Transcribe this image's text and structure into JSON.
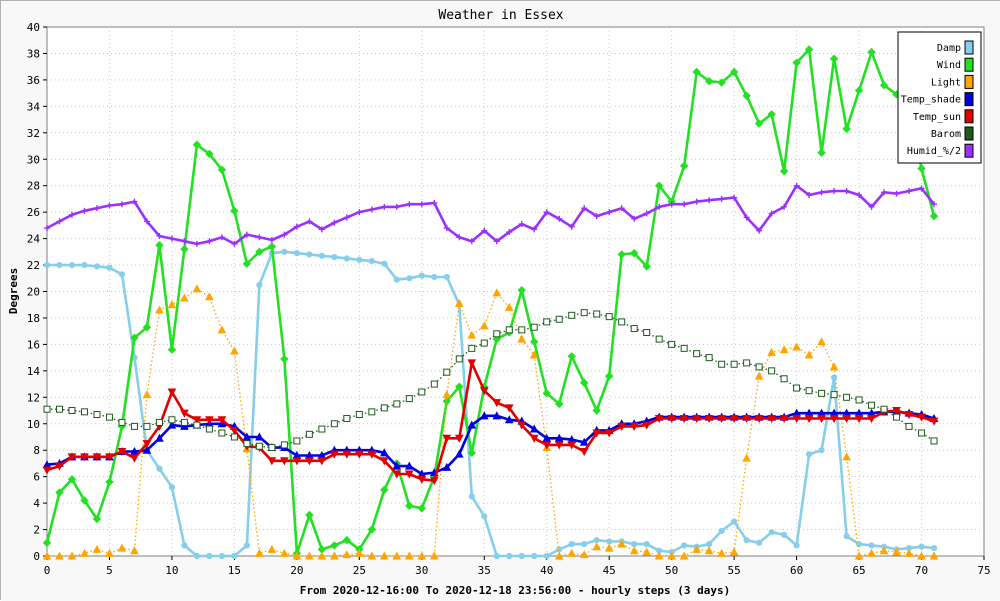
{
  "chart_data": {
    "type": "line",
    "title": "Weather in Essex",
    "xlabel": "From 2020-12-16:00 To 2020-12-18 23:56:00 - hourly steps (3 days)",
    "ylabel": "Degrees",
    "xlim": [
      0,
      75
    ],
    "ylim": [
      0,
      40
    ],
    "xticks": [
      0,
      5,
      10,
      15,
      20,
      25,
      30,
      35,
      40,
      45,
      50,
      55,
      60,
      65,
      70,
      75
    ],
    "yticks": [
      0,
      2,
      4,
      6,
      8,
      10,
      12,
      14,
      16,
      18,
      20,
      22,
      24,
      26,
      28,
      30,
      32,
      34,
      36,
      38,
      40
    ],
    "grid": true,
    "legend_position": "top-right",
    "x": [
      0,
      1,
      2,
      3,
      4,
      5,
      6,
      7,
      8,
      9,
      10,
      11,
      12,
      13,
      14,
      15,
      16,
      17,
      18,
      19,
      20,
      21,
      22,
      23,
      24,
      25,
      26,
      27,
      28,
      29,
      30,
      31,
      32,
      33,
      34,
      35,
      36,
      37,
      38,
      39,
      40,
      41,
      42,
      43,
      44,
      45,
      46,
      47,
      48,
      49,
      50,
      51,
      52,
      53,
      54,
      55,
      56,
      57,
      58,
      59,
      60,
      61,
      62,
      63,
      64,
      65,
      66,
      67,
      68,
      69,
      70,
      71
    ],
    "series": [
      {
        "name": "Damp",
        "color": "#87ceeb",
        "style": "solid",
        "marker": "circle",
        "values": [
          22,
          22,
          22,
          22,
          21.9,
          21.8,
          21.3,
          15,
          8,
          6.6,
          5.2,
          0.8,
          0,
          0,
          0,
          0,
          0.8,
          20.5,
          22.9,
          23,
          22.9,
          22.8,
          22.7,
          22.6,
          22.5,
          22.4,
          22.3,
          22.1,
          20.9,
          21,
          21.2,
          21.1,
          21.1,
          19,
          4.5,
          3,
          0,
          0,
          0,
          0,
          0,
          0.5,
          0.9,
          0.9,
          1.2,
          1.1,
          1.1,
          0.9,
          0.9,
          0.4,
          0.3,
          0.8,
          0.7,
          0.9,
          1.9,
          2.6,
          1.2,
          1,
          1.8,
          1.6,
          0.8,
          7.7,
          8,
          13.5,
          1.5,
          0.9,
          0.8,
          0.7,
          0.5,
          0.6,
          0.7,
          0.6
        ]
      },
      {
        "name": "Wind",
        "color": "#22e022",
        "style": "solid",
        "marker": "diamond",
        "values": [
          1,
          4.8,
          5.8,
          4.2,
          2.8,
          5.6,
          9.8,
          16.5,
          17.3,
          23.5,
          15.6,
          23.2,
          31.1,
          30.4,
          29.2,
          26.1,
          22.1,
          23,
          23.4,
          14.9,
          0.2,
          3.1,
          0.5,
          0.8,
          1.2,
          0.5,
          2,
          5,
          7,
          3.8,
          3.6,
          6,
          11.7,
          12.8,
          7.8,
          12.8,
          16.4,
          16.9,
          20.1,
          16.2,
          12.3,
          11.5,
          15.1,
          13.1,
          11,
          13.6,
          22.8,
          22.9,
          21.9,
          28,
          26.8,
          29.5,
          36.6,
          35.9,
          35.8,
          36.6,
          34.8,
          32.7,
          33.4,
          29.1,
          37.3,
          38.3,
          30.5,
          37.6,
          32.3,
          35.2,
          38.1,
          35.6,
          34.9,
          33.9,
          29.3,
          25.7
        ]
      },
      {
        "name": "Light",
        "color": "#ffa500",
        "style": "dotted",
        "marker": "triangle",
        "values": [
          0,
          0,
          0,
          0.2,
          0.5,
          0.2,
          0.6,
          0.4,
          12.2,
          18.6,
          19,
          19.5,
          20.2,
          19.6,
          17.1,
          15.5,
          8.1,
          0.2,
          0.5,
          0.2,
          0,
          0,
          0,
          0,
          0.1,
          0.2,
          0,
          0,
          0,
          0,
          0,
          0,
          12.2,
          19.1,
          16.7,
          17.4,
          19.9,
          18.8,
          16.4,
          15.2,
          8.2,
          0,
          0.2,
          0.1,
          0.7,
          0.6,
          0.9,
          0.4,
          0.3,
          0,
          0,
          0,
          0.5,
          0.4,
          0.2,
          0.3,
          7.4,
          13.6,
          15.4,
          15.6,
          15.8,
          15.2,
          16.2,
          14.3,
          7.5,
          0,
          0.2,
          0.4,
          0.3,
          0.2,
          0,
          0
        ]
      },
      {
        "name": "Temp_shade",
        "color": "#0000e0",
        "style": "solid",
        "marker": "triangle",
        "values": [
          6.9,
          7,
          7.5,
          7.5,
          7.5,
          7.5,
          7.9,
          7.9,
          8,
          8.9,
          9.9,
          9.8,
          9.9,
          10,
          10,
          9.8,
          9,
          9,
          8.2,
          8.2,
          7.6,
          7.6,
          7.6,
          8,
          8,
          8,
          8,
          7.8,
          6.8,
          6.8,
          6.2,
          6.3,
          6.7,
          7.7,
          9.9,
          10.6,
          10.6,
          10.3,
          10.2,
          9.6,
          8.9,
          8.9,
          8.8,
          8.6,
          9.5,
          9.5,
          10,
          10,
          10.2,
          10.5,
          10.5,
          10.5,
          10.5,
          10.5,
          10.5,
          10.5,
          10.5,
          10.5,
          10.5,
          10.5,
          10.8,
          10.8,
          10.8,
          10.8,
          10.8,
          10.8,
          10.8,
          10.9,
          10.9,
          10.8,
          10.7,
          10.4
        ]
      },
      {
        "name": "Temp_sun",
        "color": "#e00000",
        "style": "solid",
        "marker": "triangle-down",
        "values": [
          6.5,
          6.8,
          7.5,
          7.5,
          7.5,
          7.5,
          7.9,
          7.4,
          8.5,
          9.8,
          12.4,
          10.8,
          10.3,
          10.3,
          10.3,
          9.5,
          8.3,
          8.2,
          7.2,
          7.2,
          7.2,
          7.2,
          7.2,
          7.7,
          7.7,
          7.7,
          7.7,
          7.2,
          6.2,
          6.2,
          5.8,
          5.7,
          8.9,
          8.9,
          14.6,
          12.5,
          11.6,
          11.2,
          9.9,
          8.9,
          8.4,
          8.4,
          8.4,
          7.9,
          9.3,
          9.3,
          9.8,
          9.8,
          9.9,
          10.4,
          10.4,
          10.4,
          10.4,
          10.4,
          10.4,
          10.4,
          10.4,
          10.4,
          10.4,
          10.4,
          10.4,
          10.4,
          10.4,
          10.4,
          10.4,
          10.4,
          10.4,
          10.9,
          11,
          10.7,
          10.5,
          10.2
        ]
      },
      {
        "name": "Barom",
        "color": "#1e5a1e",
        "style": "dotted",
        "marker": "square",
        "values": [
          11.1,
          11.1,
          11,
          10.9,
          10.7,
          10.5,
          10.1,
          9.8,
          9.8,
          10.1,
          10.3,
          10.1,
          9.9,
          9.6,
          9.3,
          9,
          8.5,
          8.3,
          8.2,
          8.4,
          8.7,
          9.2,
          9.6,
          10,
          10.4,
          10.7,
          10.9,
          11.2,
          11.5,
          11.9,
          12.4,
          13,
          13.9,
          14.9,
          15.7,
          16.1,
          16.8,
          17.1,
          17.1,
          17.3,
          17.7,
          17.9,
          18.2,
          18.4,
          18.3,
          18.1,
          17.7,
          17.2,
          16.9,
          16.4,
          16,
          15.7,
          15.3,
          15,
          14.5,
          14.5,
          14.6,
          14.3,
          14,
          13.4,
          12.7,
          12.5,
          12.3,
          12.2,
          12,
          11.8,
          11.4,
          11.1,
          10.5,
          9.8,
          9.3,
          8.7
        ]
      },
      {
        "name": "Humid_%/2",
        "color": "#9b30ff",
        "style": "solid",
        "marker": "cross",
        "values": [
          24.8,
          25.3,
          25.8,
          26.1,
          26.3,
          26.5,
          26.6,
          26.8,
          25.3,
          24.2,
          24,
          23.8,
          23.6,
          23.8,
          24.1,
          23.6,
          24.3,
          24.1,
          23.9,
          24.3,
          24.9,
          25.3,
          24.7,
          25.2,
          25.6,
          26,
          26.2,
          26.4,
          26.4,
          26.6,
          26.6,
          26.7,
          24.8,
          24.1,
          23.8,
          24.6,
          23.8,
          24.5,
          25.1,
          24.7,
          26,
          25.5,
          24.9,
          26.3,
          25.7,
          26,
          26.3,
          25.5,
          25.9,
          26.4,
          26.6,
          26.6,
          26.8,
          26.9,
          27,
          27.1,
          25.6,
          24.6,
          25.9,
          26.4,
          28,
          27.3,
          27.5,
          27.6,
          27.6,
          27.3,
          26.4,
          27.5,
          27.4,
          27.6,
          27.8,
          26.6
        ]
      }
    ]
  }
}
